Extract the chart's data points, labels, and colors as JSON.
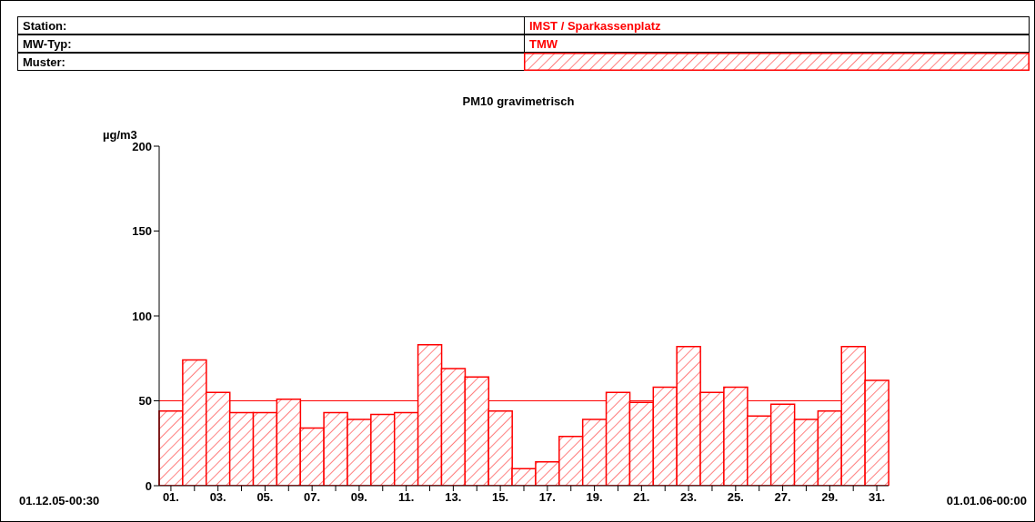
{
  "chart_data": {
    "type": "bar",
    "title": "PM10 gravimetrisch",
    "ylabel": "µg/m3",
    "annotations": [
      "Station:",
      "IMST / Sparkassenplatz",
      "MW-Typ:",
      "TMW",
      "Muster:",
      "01.12.05-00:30",
      "01.01.06-00:00"
    ],
    "categories": [
      "01.",
      null,
      "03.",
      null,
      "05.",
      null,
      "07.",
      null,
      "09.",
      null,
      "11.",
      null,
      "13.",
      null,
      "15.",
      null,
      "17.",
      null,
      "19.",
      null,
      "21.",
      null,
      "23.",
      null,
      "25.",
      null,
      "27.",
      null,
      "29.",
      null,
      "31."
    ],
    "values": [
      44,
      74,
      55,
      43,
      43,
      51,
      34,
      43,
      39,
      42,
      43,
      83,
      69,
      64,
      44,
      10,
      14,
      29,
      39,
      55,
      49,
      58,
      82,
      55,
      58,
      41,
      48,
      39,
      44,
      82,
      62
    ],
    "color": "#ff0000",
    "ylim": [
      0,
      200
    ],
    "yticks": [
      0,
      50,
      100,
      150,
      200
    ],
    "ref_lines": [
      {
        "axis": "y",
        "value": 50,
        "color": "#ff0000"
      }
    ]
  }
}
